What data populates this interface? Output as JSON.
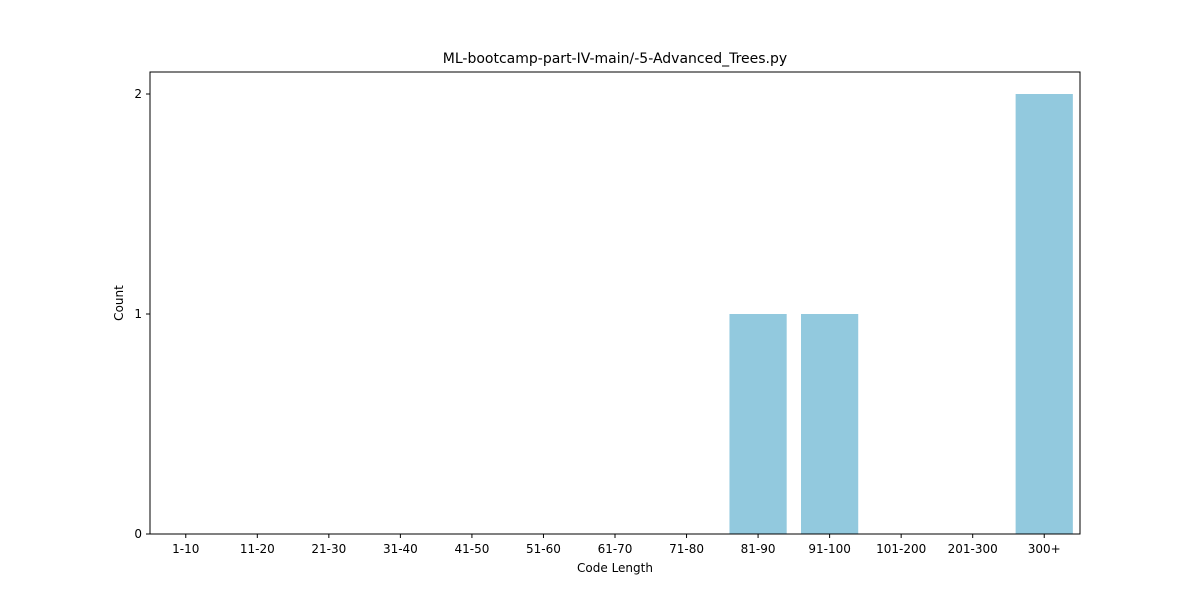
{
  "chart_data": {
    "type": "bar",
    "title": "ML-bootcamp-part-IV-main/-5-Advanced_Trees.py",
    "xlabel": "Code Length",
    "ylabel": "Count",
    "categories": [
      "1-10",
      "11-20",
      "21-30",
      "31-40",
      "41-50",
      "51-60",
      "61-70",
      "71-80",
      "81-90",
      "91-100",
      "101-200",
      "201-300",
      "300+"
    ],
    "values": [
      0,
      0,
      0,
      0,
      0,
      0,
      0,
      0,
      1,
      1,
      0,
      0,
      2
    ],
    "ylim": [
      0,
      2.1
    ],
    "yticks": [
      0,
      1,
      2
    ],
    "grid": false,
    "bar_color": "#92c9de"
  }
}
